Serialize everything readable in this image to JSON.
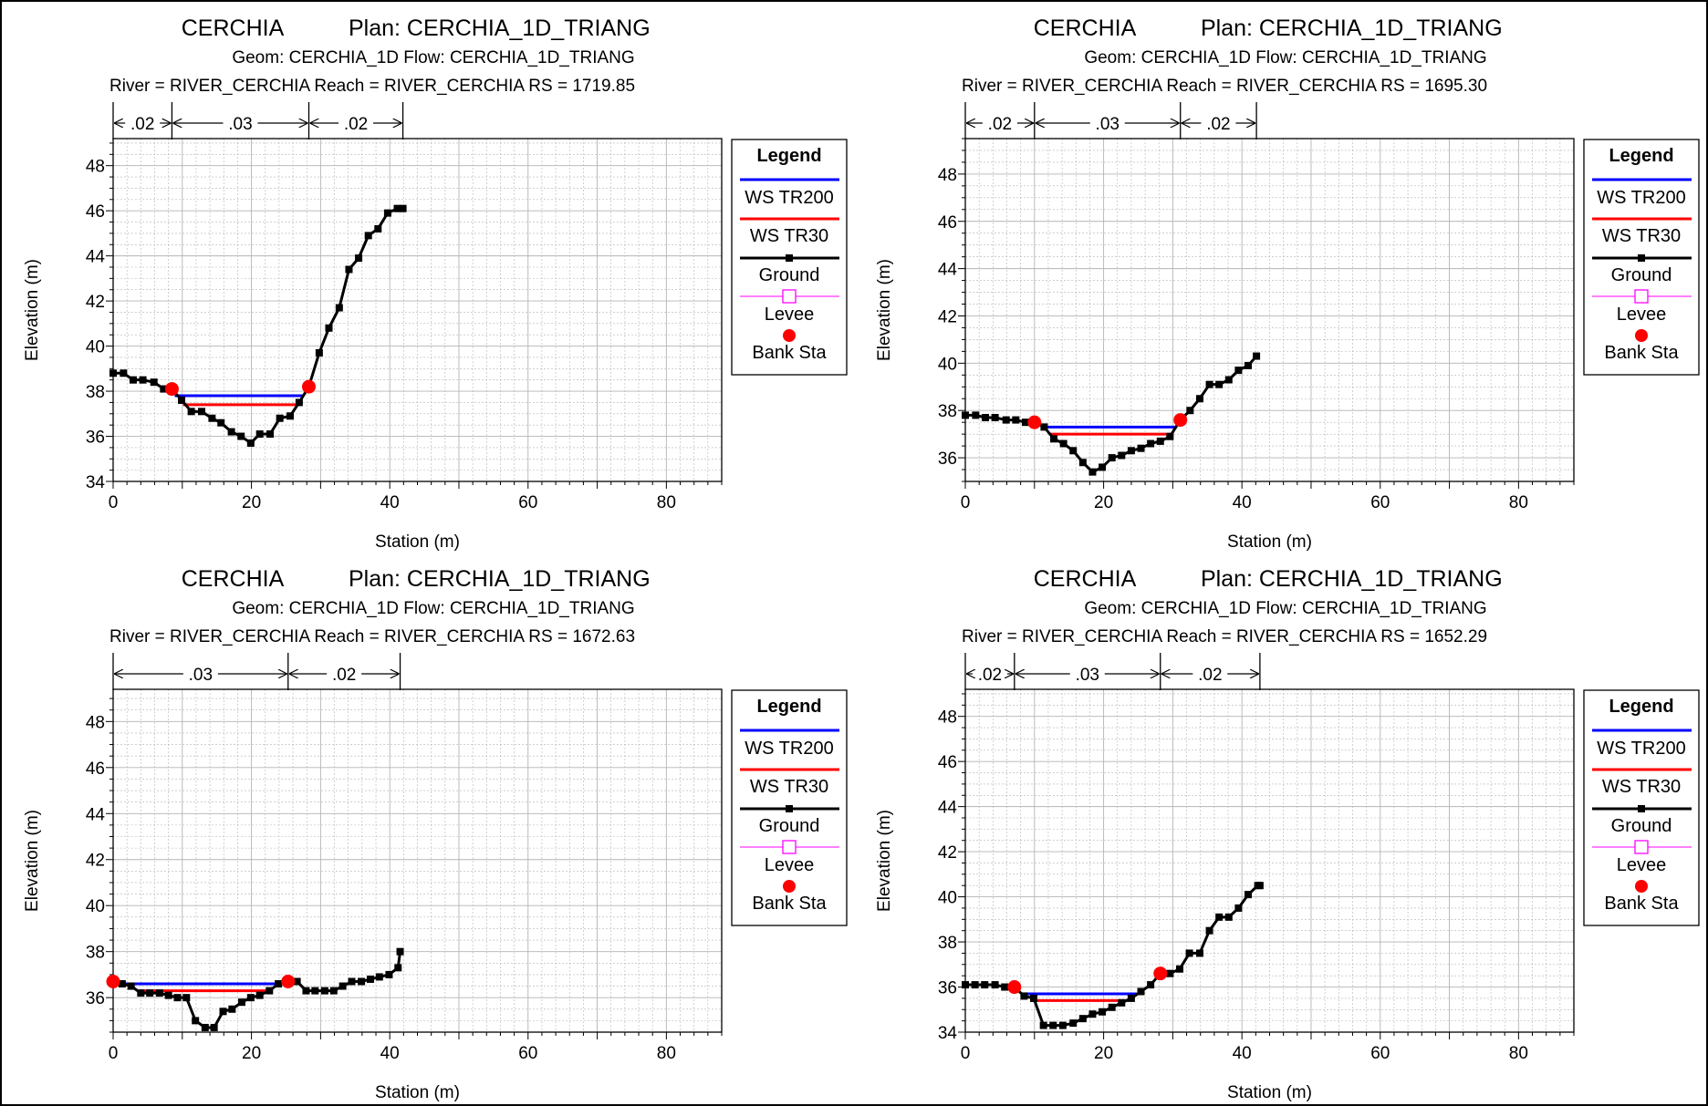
{
  "colors": {
    "ws_tr200": "#0000ff",
    "ws_tr30": "#ff0000",
    "ground": "#000000",
    "levee": "#ff00ff",
    "bank_sta": "#ff0000",
    "grid": "#b4b4b4"
  },
  "chart_data": [
    {
      "type": "line",
      "title_project": "CERCHIA",
      "title_plan": "Plan: CERCHIA_1D_TRIANG",
      "subtitle": "Geom: CERCHIA_1D    Flow: CERCHIA_1D_TRIANG",
      "location": "River = RIVER_CERCHIA   Reach = RIVER_CERCHIA      RS = 1719.85",
      "xlabel": "Station (m)",
      "ylabel": "Elevation (m)",
      "xlim": [
        0,
        88
      ],
      "ylim": [
        34,
        49.2
      ],
      "xticks": [
        0,
        20,
        40,
        60,
        80
      ],
      "yticks": [
        34,
        36,
        38,
        40,
        42,
        44,
        46,
        48
      ],
      "manning": [
        {
          "from": 0,
          "to": 8.5,
          "label": ".02"
        },
        {
          "from": 8.5,
          "to": 28.3,
          "label": ".03"
        },
        {
          "from": 28.3,
          "to": 41.9,
          "label": ".02"
        }
      ],
      "ground": [
        [
          0,
          38.8
        ],
        [
          1.5,
          38.8
        ],
        [
          2.9,
          38.5
        ],
        [
          4.3,
          38.5
        ],
        [
          5.9,
          38.4
        ],
        [
          7.3,
          38.1
        ],
        [
          8.5,
          38.1
        ],
        [
          9.9,
          37.6
        ],
        [
          11.3,
          37.1
        ],
        [
          12.8,
          37.1
        ],
        [
          14.3,
          36.8
        ],
        [
          15.6,
          36.6
        ],
        [
          17.1,
          36.2
        ],
        [
          18.5,
          36.0
        ],
        [
          19.9,
          35.7
        ],
        [
          21.2,
          36.1
        ],
        [
          22.7,
          36.1
        ],
        [
          24.1,
          36.8
        ],
        [
          25.6,
          36.9
        ],
        [
          26.9,
          37.5
        ],
        [
          28.3,
          38.2
        ],
        [
          29.8,
          39.7
        ],
        [
          31.2,
          40.8
        ],
        [
          32.7,
          41.7
        ],
        [
          34.1,
          43.4
        ],
        [
          35.5,
          43.9
        ],
        [
          36.9,
          44.9
        ],
        [
          38.3,
          45.2
        ],
        [
          39.7,
          45.9
        ],
        [
          41.1,
          46.1
        ],
        [
          41.9,
          46.1
        ]
      ],
      "levees": [],
      "ws_tr200": {
        "elev": 37.8,
        "from": 8.9,
        "to": 27.4
      },
      "ws_tr30": {
        "elev": 37.4,
        "from": 10.1,
        "to": 26.8
      },
      "bank_sta": [
        [
          8.5,
          38.1
        ],
        [
          28.3,
          38.2
        ]
      ],
      "legend": {
        "title": "Legend",
        "entries": [
          "WS TR200",
          "WS TR30",
          "Ground",
          "Levee",
          "Bank Sta"
        ]
      }
    },
    {
      "type": "line",
      "title_project": "CERCHIA",
      "title_plan": "Plan: CERCHIA_1D_TRIANG",
      "subtitle": "Geom: CERCHIA_1D    Flow: CERCHIA_1D_TRIANG",
      "location": "River = RIVER_CERCHIA   Reach = RIVER_CERCHIA      RS = 1695.30",
      "xlabel": "Station (m)",
      "ylabel": "Elevation (m)",
      "xlim": [
        0,
        88
      ],
      "ylim": [
        35,
        49.5
      ],
      "xticks": [
        0,
        20,
        40,
        60,
        80
      ],
      "yticks": [
        36,
        38,
        40,
        42,
        44,
        46,
        48
      ],
      "manning": [
        {
          "from": 0,
          "to": 10.0,
          "label": ".02"
        },
        {
          "from": 10.0,
          "to": 31.1,
          "label": ".03"
        },
        {
          "from": 31.1,
          "to": 42.1,
          "label": ".02"
        }
      ],
      "ground": [
        [
          0,
          37.8
        ],
        [
          1.5,
          37.8
        ],
        [
          2.9,
          37.7
        ],
        [
          4.3,
          37.7
        ],
        [
          5.9,
          37.6
        ],
        [
          7.3,
          37.6
        ],
        [
          8.7,
          37.5
        ],
        [
          10.0,
          37.5
        ],
        [
          11.4,
          37.3
        ],
        [
          12.8,
          36.8
        ],
        [
          14.2,
          36.6
        ],
        [
          15.6,
          36.3
        ],
        [
          17.0,
          35.8
        ],
        [
          18.4,
          35.4
        ],
        [
          19.8,
          35.6
        ],
        [
          21.2,
          36.0
        ],
        [
          22.6,
          36.1
        ],
        [
          24.0,
          36.3
        ],
        [
          25.4,
          36.4
        ],
        [
          26.8,
          36.6
        ],
        [
          28.2,
          36.7
        ],
        [
          29.6,
          36.9
        ],
        [
          31.1,
          37.6
        ],
        [
          32.5,
          38.0
        ],
        [
          33.9,
          38.5
        ],
        [
          35.3,
          39.1
        ],
        [
          36.7,
          39.1
        ],
        [
          38.1,
          39.3
        ],
        [
          39.5,
          39.7
        ],
        [
          40.9,
          39.9
        ],
        [
          42.1,
          40.3
        ]
      ],
      "levees": [],
      "ws_tr200": {
        "elev": 37.3,
        "from": 11.3,
        "to": 30.6
      },
      "ws_tr30": {
        "elev": 37.0,
        "from": 12.3,
        "to": 30.1
      },
      "bank_sta": [
        [
          10.0,
          37.5
        ],
        [
          31.1,
          37.6
        ]
      ],
      "legend": {
        "title": "Legend",
        "entries": [
          "WS TR200",
          "WS TR30",
          "Ground",
          "Levee",
          "Bank Sta"
        ]
      }
    },
    {
      "type": "line",
      "title_project": "CERCHIA",
      "title_plan": "Plan: CERCHIA_1D_TRIANG",
      "subtitle": "Geom: CERCHIA_1D    Flow: CERCHIA_1D_TRIANG",
      "location": "River = RIVER_CERCHIA   Reach = RIVER_CERCHIA      RS = 1672.63",
      "xlabel": "Station (m)",
      "ylabel": "Elevation (m)",
      "xlim": [
        0,
        88
      ],
      "ylim": [
        34.5,
        49.4
      ],
      "xticks": [
        0,
        20,
        40,
        60,
        80
      ],
      "yticks": [
        36,
        38,
        40,
        42,
        44,
        46,
        48
      ],
      "manning": [
        {
          "from": 0,
          "to": 25.3,
          "label": ".03"
        },
        {
          "from": 25.3,
          "to": 41.5,
          "label": ".02"
        }
      ],
      "ground": [
        [
          0,
          36.7
        ],
        [
          1.3,
          36.6
        ],
        [
          2.6,
          36.5
        ],
        [
          4.0,
          36.2
        ],
        [
          5.3,
          36.2
        ],
        [
          6.7,
          36.2
        ],
        [
          8.0,
          36.1
        ],
        [
          9.3,
          36.0
        ],
        [
          10.6,
          36.0
        ],
        [
          11.9,
          35.0
        ],
        [
          13.3,
          34.7
        ],
        [
          14.6,
          34.7
        ],
        [
          15.9,
          35.4
        ],
        [
          17.2,
          35.5
        ],
        [
          18.6,
          35.8
        ],
        [
          19.9,
          36.0
        ],
        [
          21.2,
          36.1
        ],
        [
          22.6,
          36.3
        ],
        [
          23.9,
          36.6
        ],
        [
          25.3,
          36.7
        ],
        [
          26.6,
          36.7
        ],
        [
          27.9,
          36.3
        ],
        [
          29.2,
          36.3
        ],
        [
          30.6,
          36.3
        ],
        [
          31.9,
          36.3
        ],
        [
          33.2,
          36.5
        ],
        [
          34.5,
          36.7
        ],
        [
          35.9,
          36.7
        ],
        [
          37.2,
          36.8
        ],
        [
          38.5,
          36.9
        ],
        [
          39.9,
          37.0
        ],
        [
          41.2,
          37.3
        ],
        [
          41.5,
          38.0
        ]
      ],
      "levees": [],
      "ws_tr200": {
        "elev": 36.6,
        "from": 0,
        "to": 24.2
      },
      "ws_tr30": {
        "elev": 36.3,
        "from": 3.9,
        "to": 22.4
      },
      "bank_sta": [
        [
          0,
          36.7
        ],
        [
          25.3,
          36.7
        ]
      ],
      "legend": {
        "title": "Legend",
        "entries": [
          "WS TR200",
          "WS TR30",
          "Ground",
          "Levee",
          "Bank Sta"
        ]
      }
    },
    {
      "type": "line",
      "title_project": "CERCHIA",
      "title_plan": "Plan: CERCHIA_1D_TRIANG",
      "subtitle": "Geom: CERCHIA_1D    Flow: CERCHIA_1D_TRIANG",
      "location": "River = RIVER_CERCHIA   Reach = RIVER_CERCHIA      RS = 1652.29",
      "xlabel": "Station (m)",
      "ylabel": "Elevation (m)",
      "xlim": [
        0,
        88
      ],
      "ylim": [
        34,
        49.2
      ],
      "xticks": [
        0,
        20,
        40,
        60,
        80
      ],
      "yticks": [
        34,
        36,
        38,
        40,
        42,
        44,
        46,
        48
      ],
      "manning": [
        {
          "from": 0,
          "to": 7.1,
          "label": ".02"
        },
        {
          "from": 7.1,
          "to": 28.2,
          "label": ".03"
        },
        {
          "from": 28.2,
          "to": 42.6,
          "label": ".02"
        }
      ],
      "ground": [
        [
          0,
          36.1
        ],
        [
          1.4,
          36.1
        ],
        [
          2.8,
          36.1
        ],
        [
          4.3,
          36.1
        ],
        [
          5.7,
          36.0
        ],
        [
          7.1,
          36.0
        ],
        [
          8.5,
          35.6
        ],
        [
          9.9,
          35.5
        ],
        [
          11.3,
          34.3
        ],
        [
          12.7,
          34.3
        ],
        [
          14.1,
          34.3
        ],
        [
          15.6,
          34.4
        ],
        [
          17.0,
          34.6
        ],
        [
          18.4,
          34.8
        ],
        [
          19.8,
          34.9
        ],
        [
          21.2,
          35.1
        ],
        [
          22.6,
          35.3
        ],
        [
          24.0,
          35.5
        ],
        [
          25.4,
          35.8
        ],
        [
          26.8,
          36.1
        ],
        [
          28.2,
          36.6
        ],
        [
          29.6,
          36.6
        ],
        [
          31.0,
          36.8
        ],
        [
          32.4,
          37.5
        ],
        [
          33.9,
          37.5
        ],
        [
          35.3,
          38.5
        ],
        [
          36.7,
          39.1
        ],
        [
          38.1,
          39.1
        ],
        [
          39.5,
          39.5
        ],
        [
          40.9,
          40.1
        ],
        [
          42.3,
          40.5
        ],
        [
          42.6,
          40.5
        ]
      ],
      "levees": [],
      "ws_tr200": {
        "elev": 35.7,
        "from": 8.1,
        "to": 24.8
      },
      "ws_tr30": {
        "elev": 35.4,
        "from": 9.4,
        "to": 23.5
      },
      "bank_sta": [
        [
          7.1,
          36.0
        ],
        [
          28.2,
          36.6
        ]
      ],
      "legend": {
        "title": "Legend",
        "entries": [
          "WS TR200",
          "WS TR30",
          "Ground",
          "Levee",
          "Bank Sta"
        ]
      }
    }
  ]
}
